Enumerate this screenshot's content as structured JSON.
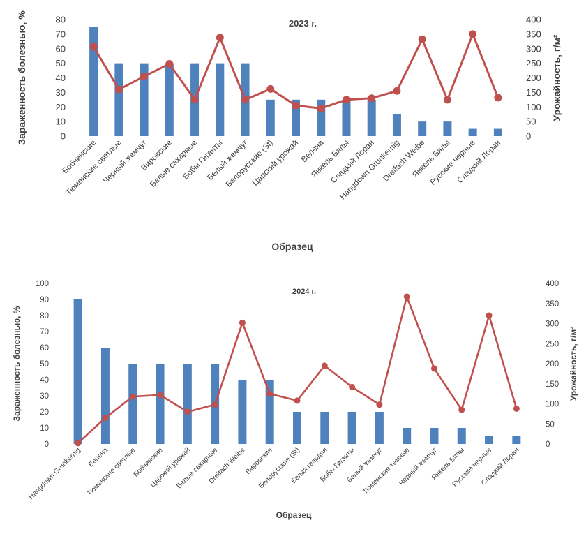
{
  "chart_data": [
    {
      "type": "bar",
      "title": "2023 г.",
      "xlabel": "Образец",
      "ylabel": "Зараженность болезнью, %",
      "y2label": "Урожайность, г/м²",
      "ylim": [
        0,
        80
      ],
      "y_ticks": [
        0,
        10,
        20,
        30,
        40,
        50,
        60,
        70,
        80
      ],
      "y2lim": [
        0,
        400
      ],
      "y2_ticks": [
        0,
        50,
        100,
        150,
        200,
        250,
        300,
        350,
        400
      ],
      "categories": [
        "Бобчинские",
        "Тюменские светлые",
        "Черный жемчуг",
        "Вировские",
        "Белые сахарные",
        "Бобы Гиганты",
        "Белый жемчуг",
        "Белорусские (St)",
        "Царский урожай",
        "Велена",
        "Янкель Бялы",
        "Сладкий Лоран",
        "Hangdown Grunkernig",
        "Dreifach Weibe",
        "Янкель Бялы",
        "Русские черные",
        "Сладкий Лоран"
      ],
      "series": [
        {
          "name": "Зараженность болезнью, %",
          "kind": "bar",
          "axis": "left",
          "color": "#4f81bd",
          "values": [
            75,
            50,
            50,
            50,
            50,
            50,
            50,
            25,
            25,
            25,
            25,
            25,
            15,
            10,
            10,
            5,
            5
          ]
        },
        {
          "name": "Урожайность, г/м²",
          "kind": "line",
          "axis": "right",
          "color": "#c0504d",
          "values": [
            307,
            160,
            205,
            248,
            125,
            338,
            125,
            162,
            105,
            95,
            125,
            130,
            155,
            332,
            125,
            350,
            132
          ]
        }
      ]
    },
    {
      "type": "bar",
      "title": "2024 г.",
      "xlabel": "Образец",
      "ylabel": "Зараженность болезнью, %",
      "y2label": "Урожайность, г/м²",
      "ylim": [
        0,
        100
      ],
      "y_ticks": [
        0,
        10,
        20,
        30,
        40,
        50,
        60,
        70,
        80,
        90,
        100
      ],
      "y2lim": [
        0,
        400
      ],
      "y2_ticks": [
        0,
        50,
        100,
        150,
        200,
        250,
        300,
        350,
        400
      ],
      "categories": [
        "Hangdown Grunkernig",
        "Велена",
        "Тюменские светлые",
        "Бобчинские",
        "Царский урожай",
        "Белые сахарные",
        "Dreifach Weibe",
        "Вировские",
        "Белорусские (St)",
        "Белая гвардия",
        "Бобы Гиганты",
        "Белый жемчуг",
        "Тюменские темные",
        "Черный жемчуг",
        "Янкель Бялы",
        "Русские черные",
        "Сладкий Лоран"
      ],
      "series": [
        {
          "name": "Зараженность болезнью, %",
          "kind": "bar",
          "axis": "left",
          "color": "#4f81bd",
          "values": [
            90,
            60,
            50,
            50,
            50,
            50,
            40,
            40,
            20,
            20,
            20,
            20,
            10,
            10,
            10,
            5,
            5
          ]
        },
        {
          "name": "Урожайность, г/м²",
          "kind": "line",
          "axis": "right",
          "color": "#c0504d",
          "values": [
            2,
            65,
            118,
            122,
            80,
            98,
            302,
            125,
            108,
            195,
            142,
            98,
            367,
            188,
            85,
            320,
            88
          ]
        }
      ]
    }
  ]
}
